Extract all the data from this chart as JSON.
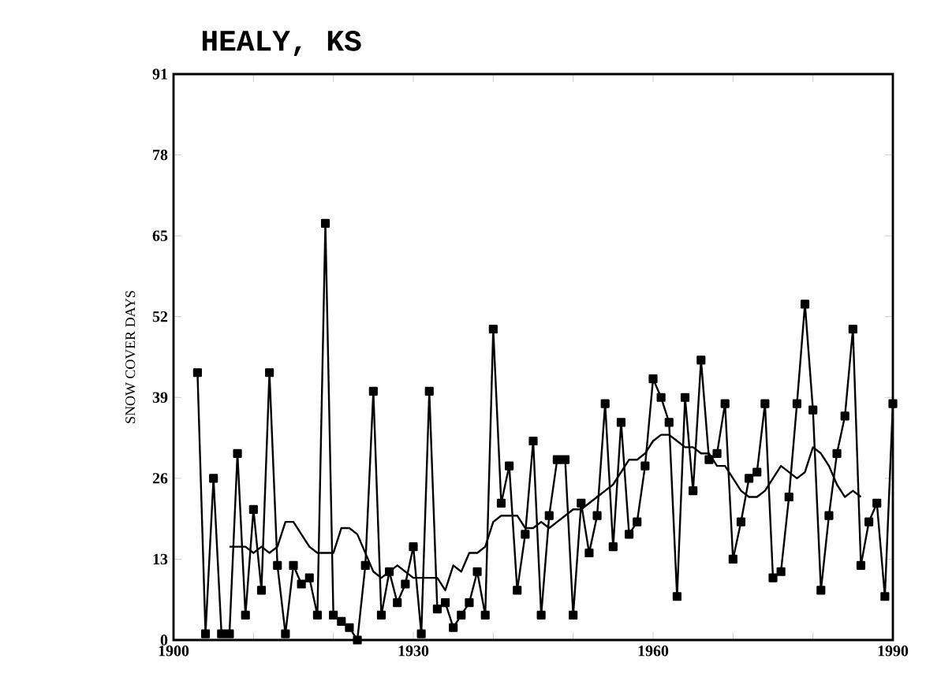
{
  "chart_data": {
    "type": "line",
    "title": "HEALY, KS",
    "ylabel": "SNOW COVER DAYS",
    "xlim": [
      1900,
      1990
    ],
    "ylim": [
      0,
      91
    ],
    "xticks": [
      1900,
      {
        "value": 1910,
        "label": null
      },
      {
        "value": 1920,
        "label": null
      },
      1930,
      {
        "value": 1940,
        "label": null
      },
      {
        "value": 1950,
        "label": null
      },
      1960,
      {
        "value": 1970,
        "label": null
      },
      {
        "value": 1980,
        "label": null
      },
      1990
    ],
    "yticks": [
      0,
      13,
      26,
      39,
      52,
      65,
      78,
      91
    ],
    "series": [
      {
        "color": "#000000",
        "marker": "square",
        "x": [
          1903,
          1904,
          1905,
          1906,
          1907,
          1908,
          1909,
          1910,
          1911,
          1912,
          1913,
          1914,
          1915,
          1916,
          1917,
          1918,
          1919,
          1920,
          1921,
          1922,
          1923,
          1924,
          1925,
          1926,
          1927,
          1928,
          1929,
          1930,
          1931,
          1932,
          1933,
          1934,
          1935,
          1936,
          1937,
          1938,
          1939,
          1940,
          1941,
          1942,
          1943,
          1944,
          1945,
          1946,
          1947,
          1948,
          1949,
          1950,
          1951,
          1952,
          1953,
          1954,
          1955,
          1956,
          1957,
          1958,
          1959,
          1960,
          1961,
          1962,
          1963,
          1964,
          1965,
          1966,
          1967,
          1968,
          1969,
          1970,
          1971,
          1972,
          1973,
          1974,
          1975,
          1976,
          1977,
          1978,
          1979,
          1980,
          1981,
          1982,
          1983,
          1984,
          1985,
          1986,
          1987,
          1988,
          1989,
          1990
        ],
        "values": [
          43,
          1,
          26,
          1,
          1,
          30,
          4,
          21,
          8,
          43,
          12,
          1,
          12,
          9,
          10,
          4,
          67,
          4,
          3,
          2,
          0,
          12,
          40,
          4,
          11,
          6,
          9,
          15,
          1,
          40,
          5,
          6,
          2,
          4,
          6,
          11,
          4,
          50,
          22,
          28,
          8,
          17,
          32,
          4,
          20,
          29,
          29,
          4,
          22,
          14,
          20,
          38,
          15,
          35,
          17,
          19,
          28,
          42,
          39,
          35,
          7,
          39,
          24,
          45,
          29,
          30,
          38,
          13,
          19,
          26,
          27,
          38,
          10,
          11,
          23,
          38,
          54,
          37,
          8,
          20,
          30,
          36,
          50,
          12,
          19,
          22,
          7,
          38
        ]
      },
      {
        "color": "#000000",
        "marker": "none",
        "x": [
          1907,
          1908,
          1909,
          1910,
          1911,
          1912,
          1913,
          1914,
          1915,
          1916,
          1917,
          1918,
          1919,
          1920,
          1921,
          1922,
          1923,
          1924,
          1925,
          1926,
          1927,
          1928,
          1929,
          1930,
          1931,
          1932,
          1933,
          1934,
          1935,
          1936,
          1937,
          1938,
          1939,
          1940,
          1941,
          1942,
          1943,
          1944,
          1945,
          1946,
          1947,
          1948,
          1949,
          1950,
          1951,
          1952,
          1953,
          1954,
          1955,
          1956,
          1957,
          1958,
          1959,
          1960,
          1961,
          1962,
          1963,
          1964,
          1965,
          1966,
          1967,
          1968,
          1969,
          1970,
          1971,
          1972,
          1973,
          1974,
          1975,
          1976,
          1977,
          1978,
          1979,
          1980,
          1981,
          1982,
          1983,
          1984,
          1985,
          1986
        ],
        "values": [
          15,
          15,
          15,
          14,
          15,
          14,
          15,
          19,
          19,
          17,
          15,
          14,
          14,
          14,
          18,
          18,
          17,
          14,
          11,
          10,
          11,
          12,
          11,
          10,
          10,
          10,
          10,
          8,
          12,
          11,
          14,
          14,
          15,
          19,
          20,
          20,
          20,
          18,
          18,
          19,
          18,
          19,
          20,
          21,
          21,
          22,
          23,
          24,
          25,
          27,
          29,
          29,
          30,
          32,
          33,
          33,
          32,
          31,
          31,
          30,
          30,
          28,
          28,
          26,
          24,
          23,
          23,
          24,
          26,
          28,
          27,
          26,
          27,
          31,
          30,
          28,
          25,
          23,
          24,
          23
        ]
      }
    ]
  }
}
